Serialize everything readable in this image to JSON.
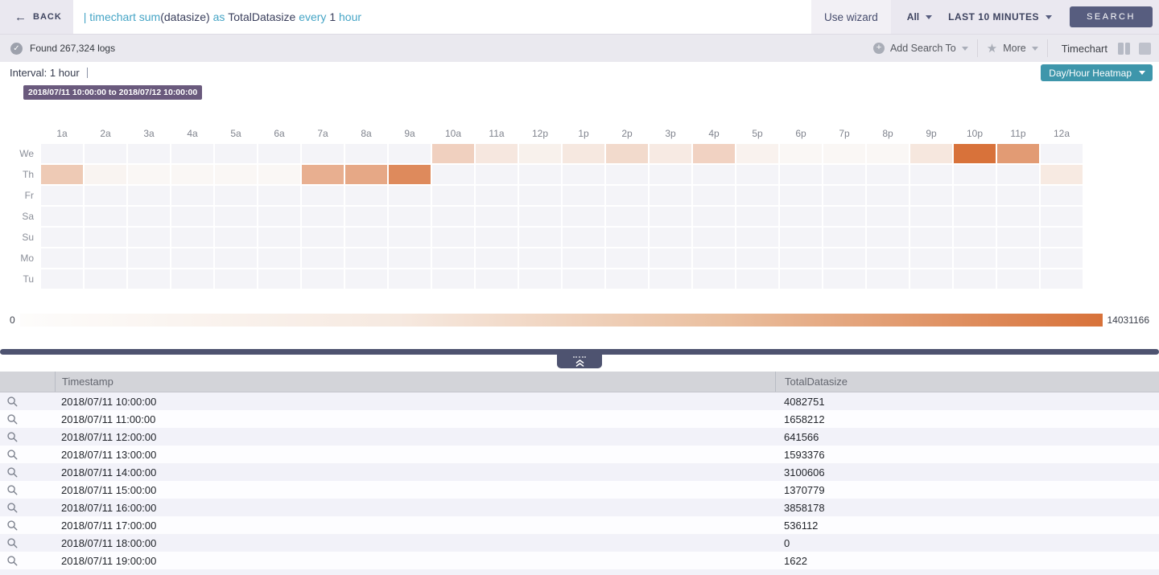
{
  "top_bar": {
    "back_label": "BACK",
    "query_tokens": [
      {
        "text": "| timechart sum",
        "type": "keyword"
      },
      {
        "text": "(datasize)",
        "type": "plain"
      },
      {
        "text": " as ",
        "type": "keyword"
      },
      {
        "text": "TotalDatasize",
        "type": "plain"
      },
      {
        "text": " every ",
        "type": "keyword"
      },
      {
        "text": "1",
        "type": "plain"
      },
      {
        "text": " hour",
        "type": "keyword"
      }
    ],
    "use_wizard_label": "Use wizard",
    "scope_dropdown_value": "All",
    "time_range_dropdown_value": "LAST 10 MINUTES",
    "search_button_label": "SEARCH"
  },
  "results_bar": {
    "found_text": "Found 267,324 logs",
    "add_search_to_label": "Add Search To",
    "more_label": "More",
    "timechart_label": "Timechart",
    "icons": {
      "check": "✓",
      "plus": "+",
      "star": "★",
      "back_arrow": "←"
    }
  },
  "chart_header": {
    "interval_label": "Interval: 1 hour",
    "view_dropdown_value": "Day/Hour Heatmap",
    "tooltip": "2018/07/11 10:00:00 to 2018/07/12 10:00:00"
  },
  "chart_data": {
    "type": "heatmap",
    "x_labels": [
      "1a",
      "2a",
      "3a",
      "4a",
      "5a",
      "6a",
      "7a",
      "8a",
      "9a",
      "10a",
      "11a",
      "12p",
      "1p",
      "2p",
      "3p",
      "4p",
      "5p",
      "6p",
      "7p",
      "8p",
      "9p",
      "10p",
      "11p",
      "12a"
    ],
    "y_labels": [
      "We",
      "Th",
      "Fr",
      "Sa",
      "Su",
      "Mo",
      "Tu"
    ],
    "min": 0,
    "max": 14031166,
    "color_low": "#faf7f5",
    "color_high": "#d8723a",
    "empty_color": "#f4f4f8",
    "legend": {
      "min_label": "0",
      "max_label": "14031166"
    },
    "series": [
      {
        "name": "We",
        "values": [
          null,
          null,
          null,
          null,
          null,
          null,
          null,
          null,
          null,
          4082751,
          1658212,
          641566,
          1593376,
          3100606,
          1370779,
          3858178,
          536112,
          0,
          1622,
          0,
          1700000,
          14031166,
          9700000,
          null
        ]
      },
      {
        "name": "Th",
        "values": [
          4800000,
          300000,
          0,
          0,
          0,
          0,
          7600000,
          8300000,
          11500000,
          null,
          null,
          null,
          null,
          null,
          null,
          null,
          null,
          null,
          null,
          null,
          null,
          null,
          null,
          1400000
        ]
      },
      {
        "name": "Fr",
        "values": [
          null,
          null,
          null,
          null,
          null,
          null,
          null,
          null,
          null,
          null,
          null,
          null,
          null,
          null,
          null,
          null,
          null,
          null,
          null,
          null,
          null,
          null,
          null,
          null
        ]
      },
      {
        "name": "Sa",
        "values": [
          null,
          null,
          null,
          null,
          null,
          null,
          null,
          null,
          null,
          null,
          null,
          null,
          null,
          null,
          null,
          null,
          null,
          null,
          null,
          null,
          null,
          null,
          null,
          null
        ]
      },
      {
        "name": "Su",
        "values": [
          null,
          null,
          null,
          null,
          null,
          null,
          null,
          null,
          null,
          null,
          null,
          null,
          null,
          null,
          null,
          null,
          null,
          null,
          null,
          null,
          null,
          null,
          null,
          null
        ]
      },
      {
        "name": "Mo",
        "values": [
          null,
          null,
          null,
          null,
          null,
          null,
          null,
          null,
          null,
          null,
          null,
          null,
          null,
          null,
          null,
          null,
          null,
          null,
          null,
          null,
          null,
          null,
          null,
          null
        ]
      },
      {
        "name": "Tu",
        "values": [
          null,
          null,
          null,
          null,
          null,
          null,
          null,
          null,
          null,
          null,
          null,
          null,
          null,
          null,
          null,
          null,
          null,
          null,
          null,
          null,
          null,
          null,
          null,
          null
        ]
      }
    ]
  },
  "table": {
    "columns": [
      "Timestamp",
      "TotalDatasize"
    ],
    "rows": [
      [
        "2018/07/11 10:00:00",
        "4082751"
      ],
      [
        "2018/07/11 11:00:00",
        "1658212"
      ],
      [
        "2018/07/11 12:00:00",
        "641566"
      ],
      [
        "2018/07/11 13:00:00",
        "1593376"
      ],
      [
        "2018/07/11 14:00:00",
        "3100606"
      ],
      [
        "2018/07/11 15:00:00",
        "1370779"
      ],
      [
        "2018/07/11 16:00:00",
        "3858178"
      ],
      [
        "2018/07/11 17:00:00",
        "536112"
      ],
      [
        "2018/07/11 18:00:00",
        "0"
      ],
      [
        "2018/07/11 19:00:00",
        "1622"
      ]
    ]
  }
}
